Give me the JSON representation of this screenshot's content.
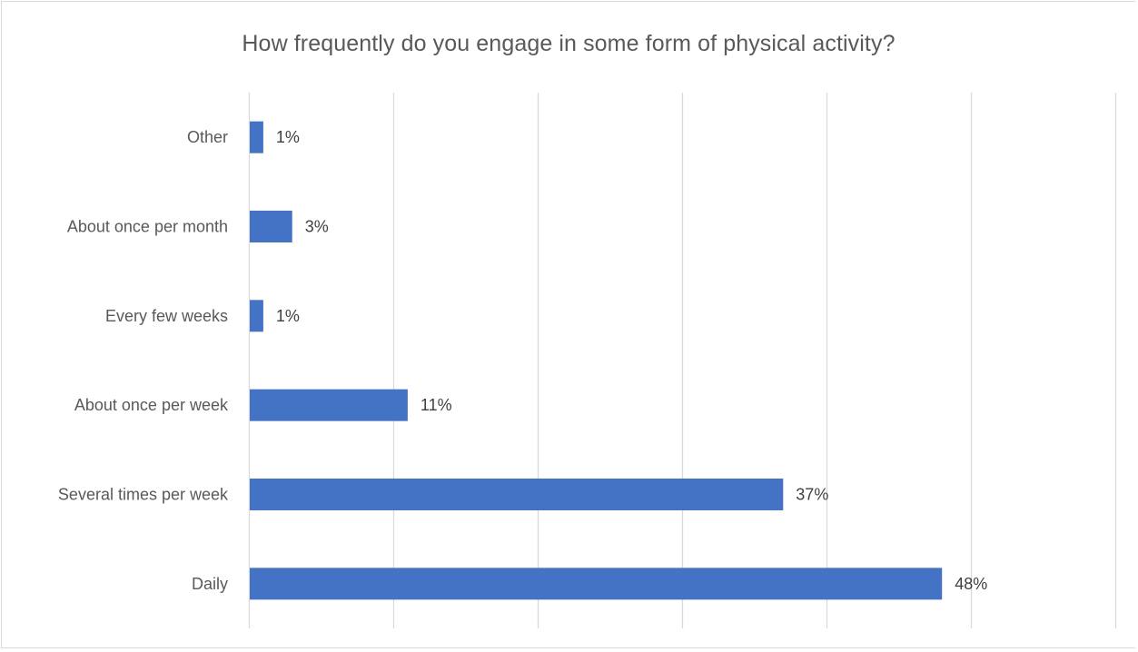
{
  "chart_data": {
    "type": "bar",
    "orientation": "horizontal",
    "title": "How frequently do you engage in some form of physical activity?",
    "categories": [
      "Other",
      "About once per month",
      "Every few weeks",
      "About once per week",
      "Several times per week",
      "Daily"
    ],
    "values": [
      1,
      3,
      1,
      11,
      37,
      48
    ],
    "data_labels": [
      "1%",
      "3%",
      "1%",
      "11%",
      "37%",
      "48%"
    ],
    "xlim": [
      0,
      60
    ],
    "unit": "%",
    "grid": true,
    "bar_color": "#4472C4",
    "grid_color": "#d9d9d9"
  }
}
